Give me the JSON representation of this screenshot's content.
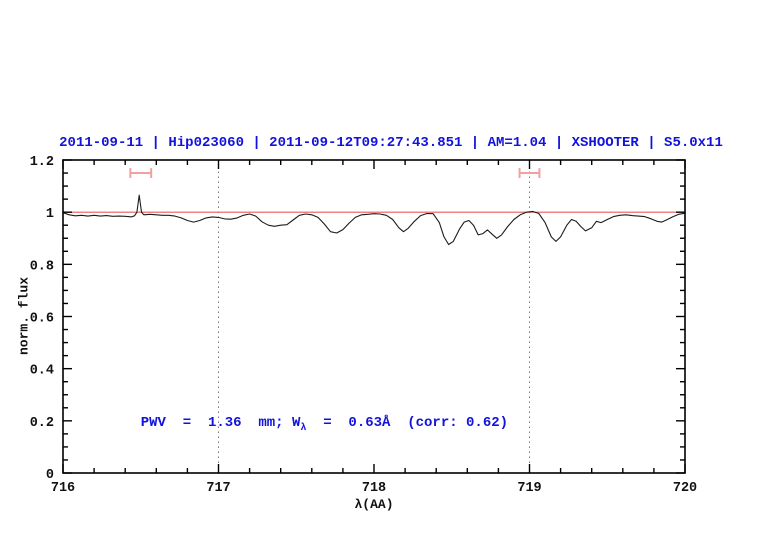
{
  "figure": {
    "background": "#ffffff",
    "text_blue": "#1212dd",
    "axis_color": "#000000"
  },
  "chart_data": {
    "type": "line",
    "title": "2011-09-11 | Hip023060 | 2011-09-12T09:27:43.851 | AM=1.04 | XSHOOTER | S5.0x11",
    "title_color": "#1212dd",
    "xlabel": "λ(AA)",
    "ylabel": "norm. flux",
    "xlim": [
      716,
      720
    ],
    "ylim": [
      0,
      1.2
    ],
    "x_major_ticks": [
      716,
      717,
      718,
      719,
      720
    ],
    "x_tick_labels": [
      "716",
      "717",
      "718",
      "719",
      "720"
    ],
    "x_minor_step": 0.2,
    "y_major_ticks": [
      0,
      0.2,
      0.4,
      0.6,
      0.8,
      1,
      1.2
    ],
    "y_tick_labels": [
      "0",
      "0.2",
      "0.4",
      "0.6",
      "0.8",
      "1",
      "1.2"
    ],
    "y_minor_step": 0.05,
    "grid": "off",
    "legend": "none",
    "vlines": [
      {
        "x": 717,
        "style": "dotted",
        "color": "#777777"
      },
      {
        "x": 719,
        "style": "dotted",
        "color": "#777777"
      }
    ],
    "series": [
      {
        "name": "continuum-fit",
        "color": "#e85c5c",
        "points": [
          [
            716.0,
            1.0
          ],
          [
            720.0,
            1.0
          ]
        ]
      },
      {
        "name": "observed-spectrum",
        "color": "#1c1c1c",
        "points": [
          [
            716.0,
            0.998
          ],
          [
            716.04,
            0.99
          ],
          [
            716.08,
            0.986
          ],
          [
            716.12,
            0.988
          ],
          [
            716.16,
            0.985
          ],
          [
            716.2,
            0.988
          ],
          [
            716.24,
            0.985
          ],
          [
            716.28,
            0.987
          ],
          [
            716.32,
            0.984
          ],
          [
            716.36,
            0.985
          ],
          [
            716.4,
            0.984
          ],
          [
            716.44,
            0.982
          ],
          [
            716.46,
            0.986
          ],
          [
            716.475,
            1.0
          ],
          [
            716.49,
            1.065
          ],
          [
            716.505,
            1.0
          ],
          [
            716.52,
            0.99
          ],
          [
            716.56,
            0.992
          ],
          [
            716.6,
            0.99
          ],
          [
            716.64,
            0.988
          ],
          [
            716.68,
            0.988
          ],
          [
            716.72,
            0.985
          ],
          [
            716.76,
            0.978
          ],
          [
            716.8,
            0.968
          ],
          [
            716.84,
            0.962
          ],
          [
            716.88,
            0.968
          ],
          [
            716.92,
            0.978
          ],
          [
            716.96,
            0.982
          ],
          [
            717.0,
            0.98
          ],
          [
            717.04,
            0.974
          ],
          [
            717.08,
            0.973
          ],
          [
            717.12,
            0.978
          ],
          [
            717.16,
            0.988
          ],
          [
            717.2,
            0.993
          ],
          [
            717.24,
            0.985
          ],
          [
            717.28,
            0.963
          ],
          [
            717.32,
            0.95
          ],
          [
            717.36,
            0.946
          ],
          [
            717.4,
            0.95
          ],
          [
            717.44,
            0.952
          ],
          [
            717.48,
            0.97
          ],
          [
            717.52,
            0.988
          ],
          [
            717.56,
            0.993
          ],
          [
            717.6,
            0.99
          ],
          [
            717.64,
            0.98
          ],
          [
            717.68,
            0.955
          ],
          [
            717.72,
            0.925
          ],
          [
            717.76,
            0.92
          ],
          [
            717.8,
            0.933
          ],
          [
            717.84,
            0.958
          ],
          [
            717.88,
            0.98
          ],
          [
            717.92,
            0.99
          ],
          [
            717.96,
            0.992
          ],
          [
            718.0,
            0.994
          ],
          [
            718.04,
            0.993
          ],
          [
            718.08,
            0.988
          ],
          [
            718.12,
            0.972
          ],
          [
            718.16,
            0.94
          ],
          [
            718.19,
            0.925
          ],
          [
            718.22,
            0.938
          ],
          [
            718.26,
            0.965
          ],
          [
            718.3,
            0.987
          ],
          [
            718.34,
            0.995
          ],
          [
            718.38,
            0.994
          ],
          [
            718.42,
            0.96
          ],
          [
            718.45,
            0.905
          ],
          [
            718.48,
            0.876
          ],
          [
            718.51,
            0.888
          ],
          [
            718.55,
            0.935
          ],
          [
            718.58,
            0.962
          ],
          [
            718.61,
            0.968
          ],
          [
            718.64,
            0.95
          ],
          [
            718.67,
            0.913
          ],
          [
            718.7,
            0.918
          ],
          [
            718.73,
            0.932
          ],
          [
            718.76,
            0.915
          ],
          [
            718.79,
            0.9
          ],
          [
            718.82,
            0.913
          ],
          [
            718.86,
            0.945
          ],
          [
            718.9,
            0.972
          ],
          [
            718.94,
            0.99
          ],
          [
            718.98,
            1.0
          ],
          [
            719.02,
            1.003
          ],
          [
            719.06,
            0.995
          ],
          [
            719.1,
            0.96
          ],
          [
            719.14,
            0.905
          ],
          [
            719.17,
            0.888
          ],
          [
            719.2,
            0.905
          ],
          [
            719.24,
            0.95
          ],
          [
            719.27,
            0.972
          ],
          [
            719.3,
            0.965
          ],
          [
            719.33,
            0.945
          ],
          [
            719.36,
            0.928
          ],
          [
            719.4,
            0.94
          ],
          [
            719.43,
            0.965
          ],
          [
            719.46,
            0.96
          ],
          [
            719.5,
            0.972
          ],
          [
            719.54,
            0.983
          ],
          [
            719.58,
            0.988
          ],
          [
            719.62,
            0.99
          ],
          [
            719.66,
            0.987
          ],
          [
            719.7,
            0.985
          ],
          [
            719.74,
            0.983
          ],
          [
            719.78,
            0.975
          ],
          [
            719.82,
            0.965
          ],
          [
            719.85,
            0.962
          ],
          [
            719.88,
            0.97
          ],
          [
            719.92,
            0.982
          ],
          [
            719.96,
            0.992
          ],
          [
            720.0,
            0.996
          ]
        ]
      }
    ],
    "range_markers": [
      {
        "x_center": 716.5,
        "x_half_width": 0.067,
        "y": 1.15,
        "cap_half_height": 0.019,
        "color": "#f2a0a0"
      },
      {
        "x_center": 719.0,
        "x_half_width": 0.064,
        "y": 1.15,
        "cap_half_height": 0.019,
        "color": "#f2a0a0"
      }
    ],
    "annotation": {
      "prefix": "PWV  =  1.36  mm; W",
      "sub": "λ",
      "suffix": "  =  0.63Å  (corr: 0.62)",
      "color": "#1212dd",
      "x": 716.5,
      "y": 0.18
    }
  }
}
